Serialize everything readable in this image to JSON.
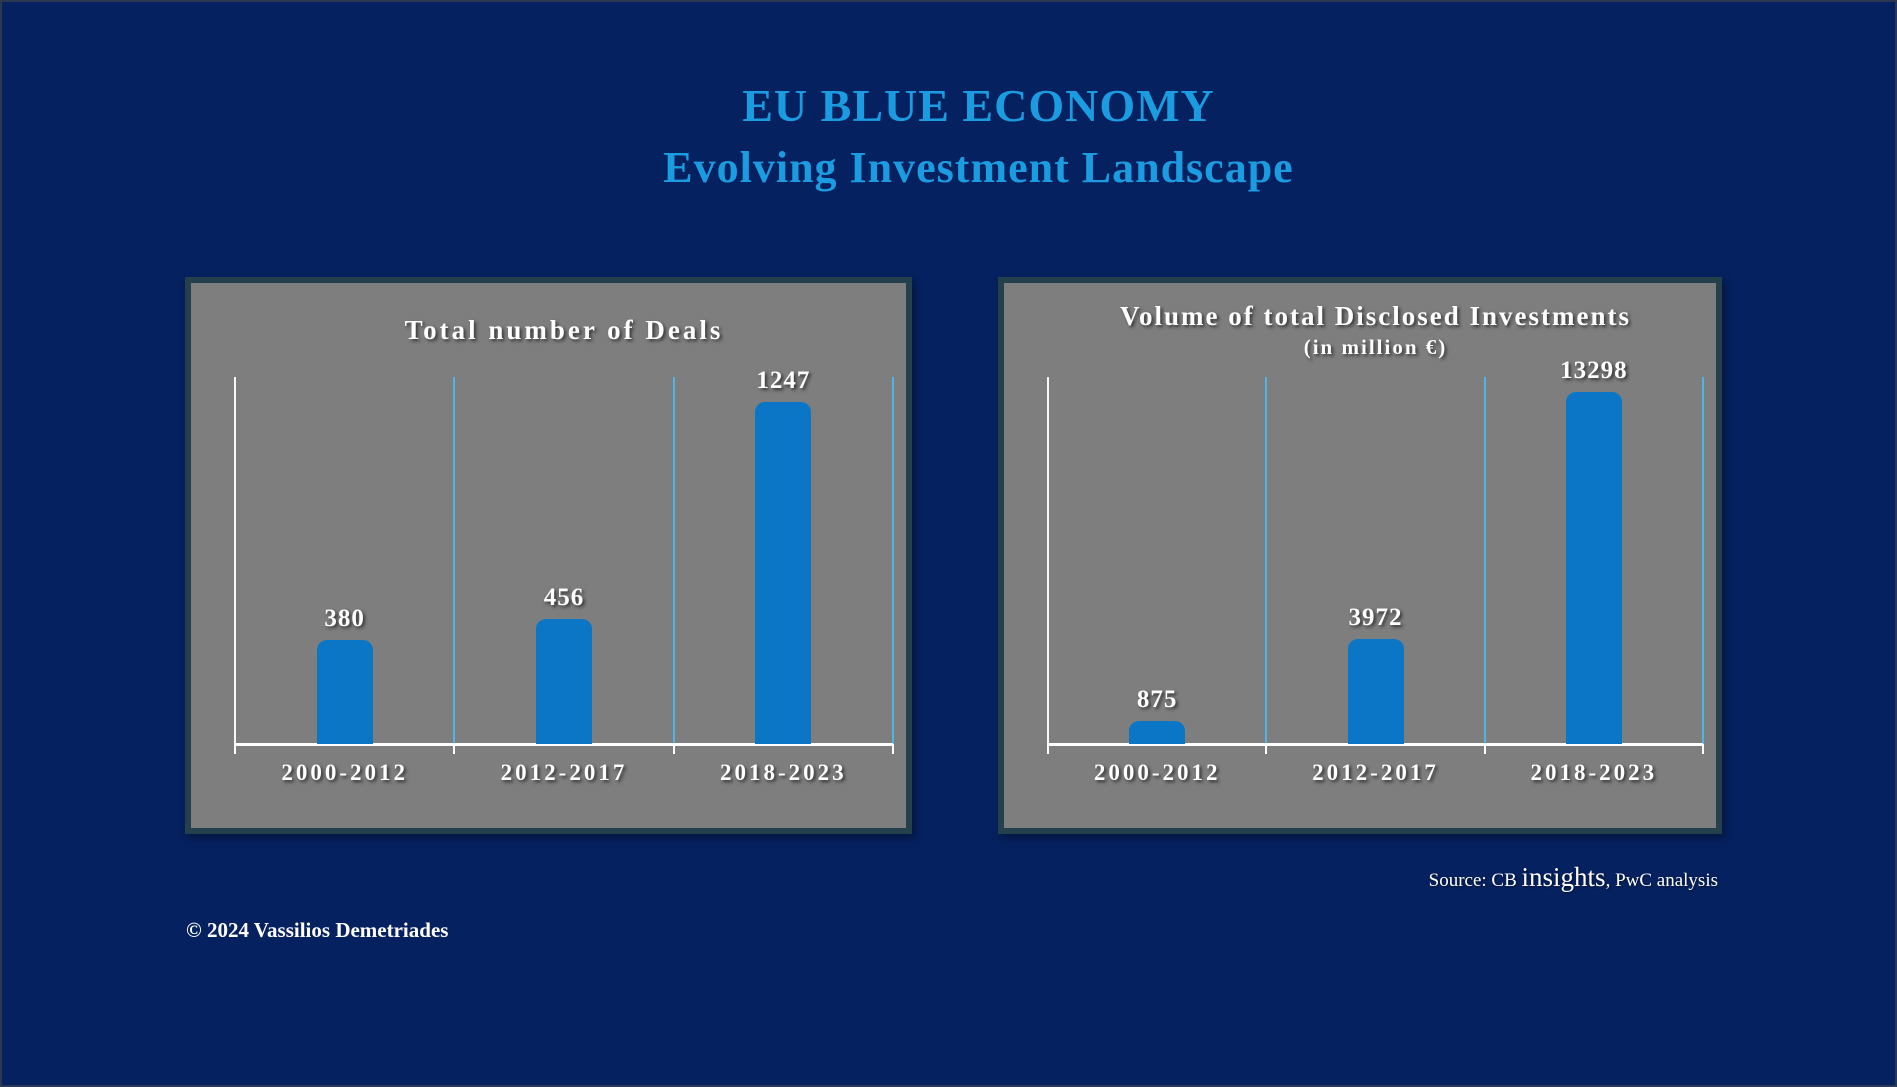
{
  "page": {
    "title_line1": "EU BLUE ECONOMY",
    "title_line2": "Evolving Investment Landscape",
    "source": {
      "prefix": "Source: CB ",
      "brand": "insights",
      "suffix": ", PwC analysis"
    },
    "copyright": "© 2024 Vassilios Demetriades",
    "colors": {
      "background": "#06215f",
      "title_blue": "#1b9ce1",
      "panel_background": "#7e7e7e",
      "panel_border": "#24404d",
      "bar_blue": "#0b76c5",
      "gridline_cyan": "#4db6e6",
      "axis_white": "#ffffff",
      "text_white": "#ffffff"
    }
  },
  "chart_data": [
    {
      "type": "bar",
      "title": "Total number of Deals",
      "subtitle": "",
      "categories": [
        "2000-2012",
        "2012-2017",
        "2018-2023"
      ],
      "values": [
        380,
        456,
        1247
      ],
      "xlabel": "",
      "ylabel": "",
      "ylim": [
        0,
        1340
      ],
      "grid": "vertical-category-separators",
      "legend": "none",
      "value_labels_shown": true
    },
    {
      "type": "bar",
      "title": "Volume of total Disclosed Investments",
      "subtitle": "(in million €)",
      "categories": [
        "2000-2012",
        "2012-2017",
        "2018-2023"
      ],
      "values": [
        875,
        3972,
        13298
      ],
      "xlabel": "",
      "ylabel": "",
      "ylim": [
        0,
        13850
      ],
      "grid": "vertical-category-separators",
      "legend": "none",
      "value_labels_shown": true
    }
  ]
}
